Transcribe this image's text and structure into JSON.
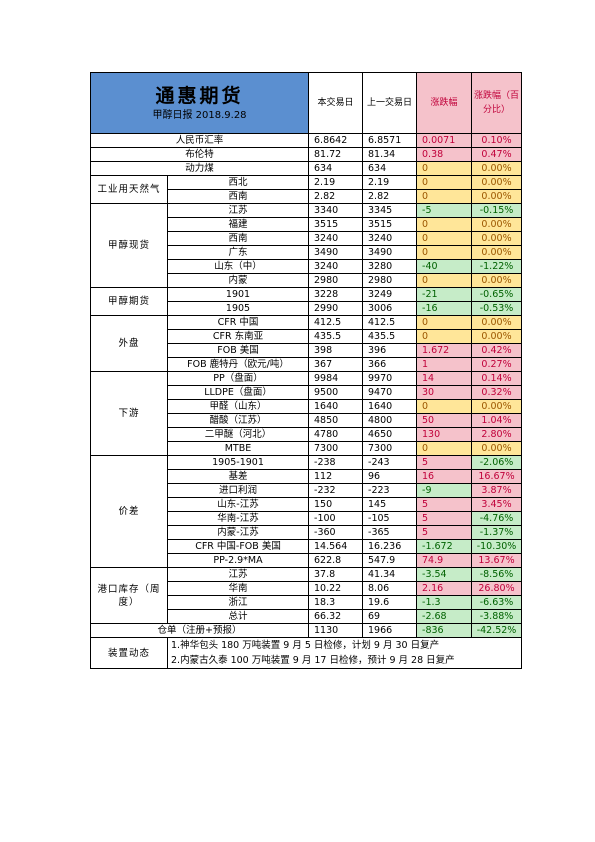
{
  "header": {
    "title": "通惠期货",
    "subtitle": "甲醇日报 2018.9.28",
    "col_current": "本交易日",
    "col_prev": "上一交易日",
    "col_change": "涨跌幅",
    "col_pct": "涨跌幅（百分比）"
  },
  "rows": {
    "fx": {
      "label": "人民币汇率",
      "cur": "6.8642",
      "prev": "6.8571",
      "chg": "0.0071",
      "pct": "0.10%"
    },
    "brent": {
      "label": "布伦特",
      "cur": "81.72",
      "prev": "81.34",
      "chg": "0.38",
      "pct": "0.47%"
    },
    "coal": {
      "label": "动力煤",
      "cur": "634",
      "prev": "634",
      "chg": "0",
      "pct": "0.00%"
    }
  },
  "gas": {
    "label": "工业用天然气",
    "items": [
      {
        "label": "西北",
        "cur": "2.19",
        "prev": "2.19",
        "chg": "0",
        "pct": "0.00%"
      },
      {
        "label": "西南",
        "cur": "2.82",
        "prev": "2.82",
        "chg": "0",
        "pct": "0.00%"
      }
    ]
  },
  "spot": {
    "label": "甲醇现货",
    "items": [
      {
        "label": "江苏",
        "cur": "3340",
        "prev": "3345",
        "chg": "-5",
        "pct": "-0.15%"
      },
      {
        "label": "福建",
        "cur": "3515",
        "prev": "3515",
        "chg": "0",
        "pct": "0.00%"
      },
      {
        "label": "西南",
        "cur": "3240",
        "prev": "3240",
        "chg": "0",
        "pct": "0.00%"
      },
      {
        "label": "广东",
        "cur": "3490",
        "prev": "3490",
        "chg": "0",
        "pct": "0.00%"
      },
      {
        "label": "山东（中）",
        "cur": "3240",
        "prev": "3280",
        "chg": "-40",
        "pct": "-1.22%"
      },
      {
        "label": "内蒙",
        "cur": "2980",
        "prev": "2980",
        "chg": "0",
        "pct": "0.00%"
      }
    ]
  },
  "futures": {
    "label": "甲醇期货",
    "items": [
      {
        "label": "1901",
        "cur": "3228",
        "prev": "3249",
        "chg": "-21",
        "pct": "-0.65%"
      },
      {
        "label": "1905",
        "cur": "2990",
        "prev": "3006",
        "chg": "-16",
        "pct": "-0.53%"
      }
    ]
  },
  "outer": {
    "label": "外盘",
    "items": [
      {
        "label": "CFR 中国",
        "cur": "412.5",
        "prev": "412.5",
        "chg": "0",
        "pct": "0.00%"
      },
      {
        "label": "CFR 东南亚",
        "cur": "435.5",
        "prev": "435.5",
        "chg": "0",
        "pct": "0.00%"
      },
      {
        "label": "FOB 美国",
        "cur": "398",
        "prev": "396",
        "chg": "1.672",
        "pct": "0.42%"
      },
      {
        "label": "FOB 鹿特丹（欧元/吨）",
        "cur": "367",
        "prev": "366",
        "chg": "1",
        "pct": "0.27%"
      }
    ]
  },
  "downstream": {
    "label": "下游",
    "items": [
      {
        "label": "PP（盘面）",
        "cur": "9984",
        "prev": "9970",
        "chg": "14",
        "pct": "0.14%"
      },
      {
        "label": "LLDPE（盘面）",
        "cur": "9500",
        "prev": "9470",
        "chg": "30",
        "pct": "0.32%"
      },
      {
        "label": "甲醛（山东）",
        "cur": "1640",
        "prev": "1640",
        "chg": "0",
        "pct": "0.00%"
      },
      {
        "label": "醋酸（江苏）",
        "cur": "4850",
        "prev": "4800",
        "chg": "50",
        "pct": "1.04%"
      },
      {
        "label": "二甲醚（河北）",
        "cur": "4780",
        "prev": "4650",
        "chg": "130",
        "pct": "2.80%"
      },
      {
        "label": "MTBE",
        "cur": "7300",
        "prev": "7300",
        "chg": "0",
        "pct": "0.00%"
      }
    ]
  },
  "spread": {
    "label": "价差",
    "items": [
      {
        "label": "1905-1901",
        "cur": "-238",
        "prev": "-243",
        "chg": "5",
        "pct": "-2.06%"
      },
      {
        "label": "基差",
        "cur": "112",
        "prev": "96",
        "chg": "16",
        "pct": "16.67%"
      },
      {
        "label": "进口利润",
        "cur": "-232",
        "prev": "-223",
        "chg": "-9",
        "pct": "3.87%"
      },
      {
        "label": "山东-江苏",
        "cur": "150",
        "prev": "145",
        "chg": "5",
        "pct": "3.45%"
      },
      {
        "label": "华南-江苏",
        "cur": "-100",
        "prev": "-105",
        "chg": "5",
        "pct": "-4.76%"
      },
      {
        "label": "内蒙-江苏",
        "cur": "-360",
        "prev": "-365",
        "chg": "5",
        "pct": "-1.37%"
      },
      {
        "label": "CFR 中国-FOB 美国",
        "cur": "14.564",
        "prev": "16.236",
        "chg": "-1.672",
        "pct": "-10.30%"
      },
      {
        "label": "PP-2.9*MA",
        "cur": "622.8",
        "prev": "547.9",
        "chg": "74.9",
        "pct": "13.67%"
      }
    ]
  },
  "inventory": {
    "label": "港口库存（周度）",
    "items": [
      {
        "label": "江苏",
        "cur": "37.8",
        "prev": "41.34",
        "chg": "-3.54",
        "pct": "-8.56%"
      },
      {
        "label": "华南",
        "cur": "10.22",
        "prev": "8.06",
        "chg": "2.16",
        "pct": "26.80%"
      },
      {
        "label": "浙江",
        "cur": "18.3",
        "prev": "19.6",
        "chg": "-1.3",
        "pct": "-6.63%"
      },
      {
        "label": "总计",
        "cur": "66.32",
        "prev": "69",
        "chg": "-2.68",
        "pct": "-3.88%"
      }
    ]
  },
  "warehouse": {
    "label": "仓单（注册+预报）",
    "cur": "1130",
    "prev": "1966",
    "chg": "-836",
    "pct": "-42.52%"
  },
  "device": {
    "label": "装置动态",
    "lines": [
      "1.神华包头 180 万吨装置 9 月 5 日检修，计划 9 月 30 日复产",
      "2.内蒙古久泰 100 万吨装置 9 月 17 日检修，预计 9 月 28 日复产"
    ]
  },
  "colors": {
    "header_blue": "#5b8fd0",
    "up": "#f5c2cb",
    "down": "#c6ecc8",
    "flat": "#ffe699"
  }
}
